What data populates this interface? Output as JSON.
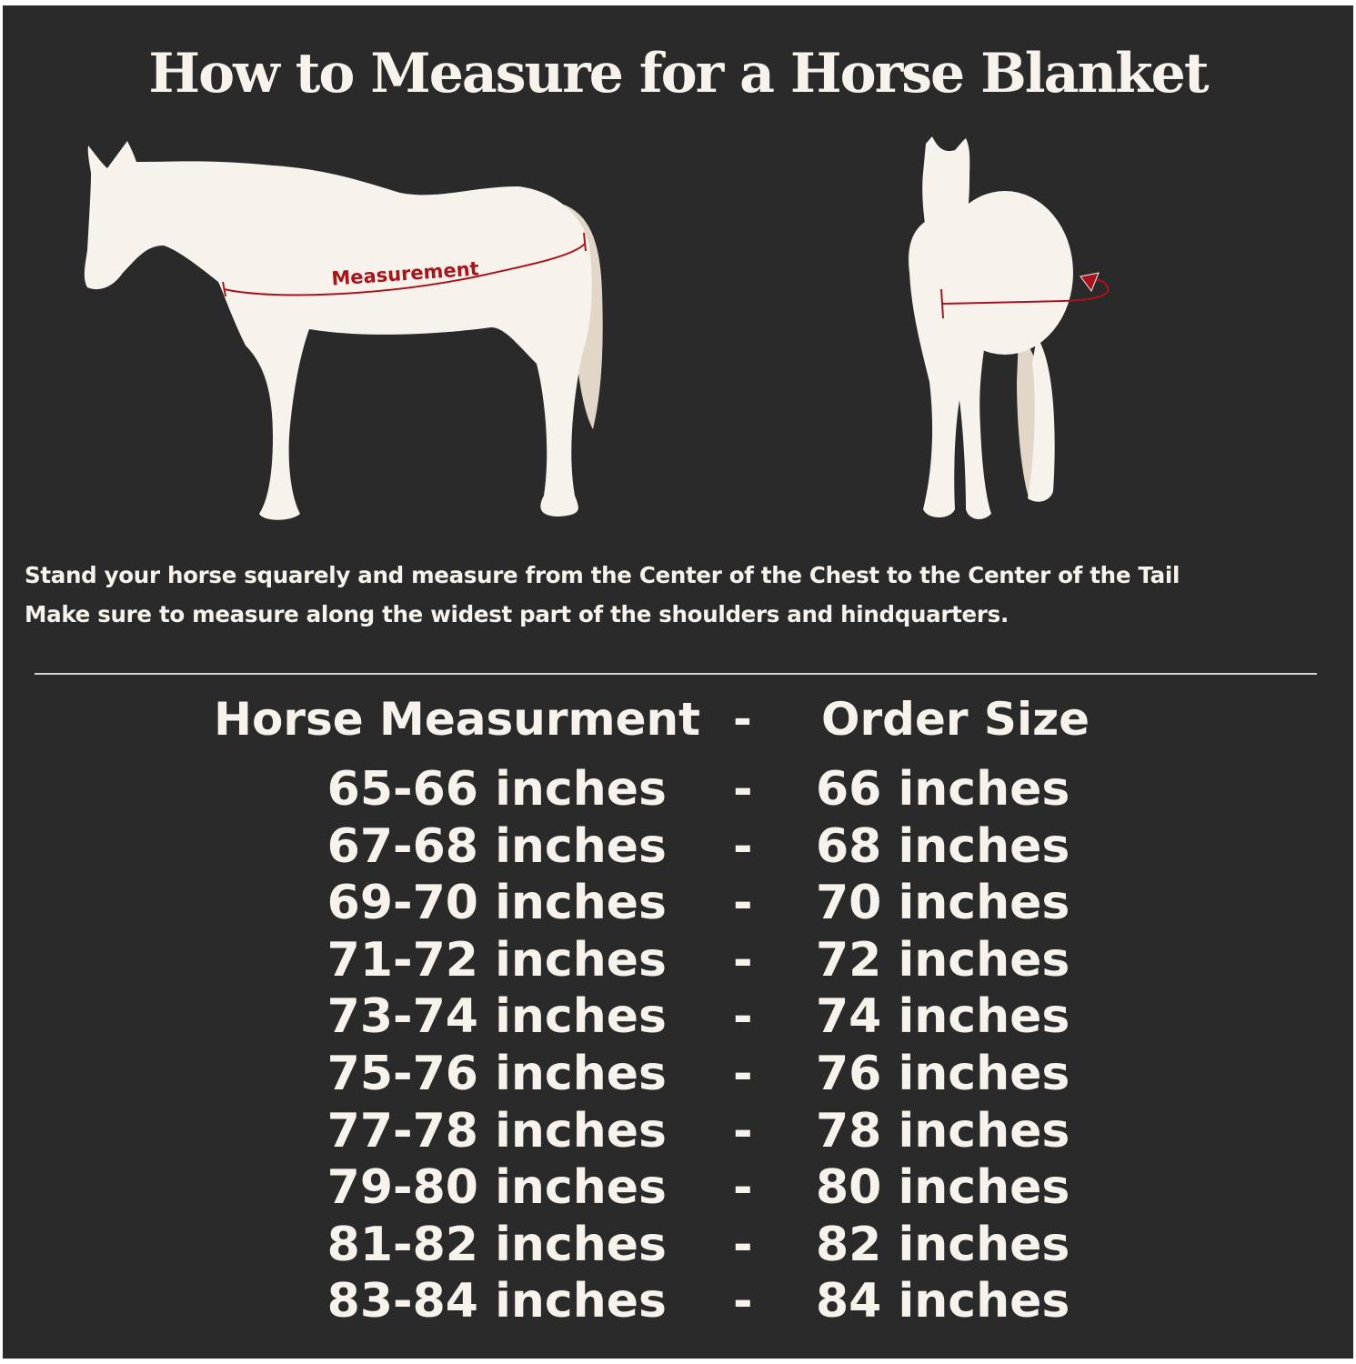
{
  "title": "How to Measure for a Horse Blanket",
  "diagram": {
    "side_label": "Measurement",
    "colors": {
      "background": "#2b2a2b",
      "horse": "#f7f2ec",
      "tail": "#e2d6c8",
      "measure_line": "#a8141c"
    }
  },
  "instructions": [
    "Stand your horse squarely and measure from the Center of the Chest to the Center of the Tail",
    "Make sure to measure along the widest part of the shoulders and hindquarters."
  ],
  "table": {
    "header": {
      "measurement": "Horse Measurment",
      "separator": "-",
      "size": "Order Size"
    },
    "rows": [
      {
        "measurement": "65-66 inches",
        "separator": "-",
        "size": "66 inches"
      },
      {
        "measurement": "67-68 inches",
        "separator": "-",
        "size": "68 inches"
      },
      {
        "measurement": "69-70 inches",
        "separator": "-",
        "size": "70 inches"
      },
      {
        "measurement": "71-72 inches",
        "separator": "-",
        "size": "72 inches"
      },
      {
        "measurement": "73-74 inches",
        "separator": "-",
        "size": "74 inches"
      },
      {
        "measurement": "75-76 inches",
        "separator": "-",
        "size": "76 inches"
      },
      {
        "measurement": "77-78 inches",
        "separator": "-",
        "size": "78 inches"
      },
      {
        "measurement": "79-80 inches",
        "separator": "-",
        "size": "80 inches"
      },
      {
        "measurement": "81-82 inches",
        "separator": "-",
        "size": "82 inches"
      },
      {
        "measurement": "83-84 inches",
        "separator": "-",
        "size": "84 inches"
      }
    ]
  }
}
